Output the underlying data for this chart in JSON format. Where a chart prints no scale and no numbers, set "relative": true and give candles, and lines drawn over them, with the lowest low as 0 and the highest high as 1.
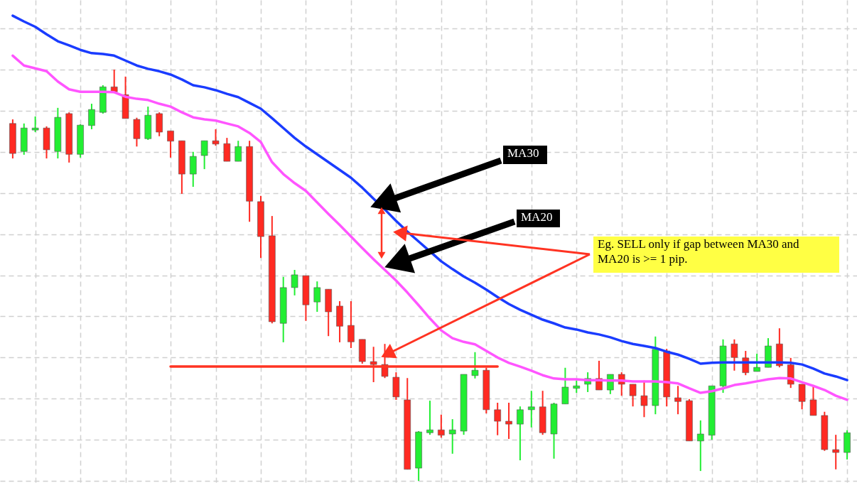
{
  "chart_data": {
    "type": "candlestick",
    "relative": true,
    "grid": true,
    "categories": [
      null,
      null,
      null,
      null,
      null,
      null,
      null,
      null,
      null,
      null,
      null,
      null,
      null,
      null,
      null,
      null,
      null,
      null,
      null,
      null,
      null,
      null,
      null,
      null,
      null,
      null,
      null,
      null,
      null,
      null,
      null,
      null,
      null,
      null,
      null,
      null,
      null,
      null,
      null,
      null,
      null,
      null,
      null,
      null,
      null,
      null,
      null,
      null,
      null,
      null,
      null,
      null,
      null,
      null,
      null,
      null,
      null,
      null,
      null,
      null,
      null,
      null,
      null,
      null,
      null,
      null,
      null,
      null,
      null,
      null,
      null,
      null,
      null,
      null,
      null
    ],
    "ohlc": [
      [
        0.869,
        0.879,
        0.784,
        0.796
      ],
      [
        0.801,
        0.869,
        0.793,
        0.858
      ],
      [
        0.853,
        0.886,
        0.848,
        0.858
      ],
      [
        0.858,
        0.862,
        0.784,
        0.805
      ],
      [
        0.801,
        0.907,
        0.784,
        0.884
      ],
      [
        0.893,
        0.896,
        0.774,
        0.794
      ],
      [
        0.794,
        0.867,
        0.786,
        0.865
      ],
      [
        0.864,
        0.917,
        0.855,
        0.903
      ],
      [
        0.896,
        0.962,
        0.893,
        0.958
      ],
      [
        0.958,
        1,
        0.946,
        0.946
      ],
      [
        0.939,
        0.983,
        0.881,
        0.881
      ],
      [
        0.879,
        0.883,
        0.813,
        0.832
      ],
      [
        0.832,
        0.91,
        0.829,
        0.889
      ],
      [
        0.893,
        0.896,
        0.838,
        0.848
      ],
      [
        0.851,
        0.851,
        0.786,
        0.826
      ],
      [
        0.827,
        0.827,
        0.698,
        0.746
      ],
      [
        0.746,
        0.8,
        0.715,
        0.789
      ],
      [
        0.791,
        0.827,
        0.758,
        0.827
      ],
      [
        0.827,
        0.855,
        0.815,
        0.819
      ],
      [
        0.82,
        0.834,
        0.777,
        0.777
      ],
      [
        0.777,
        0.827,
        0.777,
        0.813
      ],
      [
        0.813,
        0.827,
        0.63,
        0.68
      ],
      [
        0.679,
        0.693,
        0.542,
        0.594
      ],
      [
        0.596,
        0.644,
        0.383,
        0.387
      ],
      [
        0.383,
        0.496,
        0.337,
        0.47
      ],
      [
        0.47,
        0.513,
        0.451,
        0.501
      ],
      [
        0.499,
        0.499,
        0.389,
        0.428
      ],
      [
        0.435,
        0.485,
        0.411,
        0.47
      ],
      [
        0.466,
        0.466,
        0.352,
        0.411
      ],
      [
        0.425,
        0.437,
        0.337,
        0.376
      ],
      [
        0.378,
        0.437,
        0.323,
        0.338
      ],
      [
        0.344,
        0.344,
        0.285,
        0.29
      ],
      [
        0.29,
        0.326,
        0.24,
        0.283
      ],
      [
        0.283,
        0.333,
        0.25,
        0.254
      ],
      [
        0.252,
        0.264,
        0.197,
        0.204
      ],
      [
        0.197,
        0.25,
        0.028,
        0.028
      ],
      [
        0.031,
        0.121,
        0,
        0.119
      ],
      [
        0.117,
        0.195,
        0.112,
        0.124
      ],
      [
        0.124,
        0.161,
        0.105,
        0.111
      ],
      [
        0.114,
        0.15,
        0.066,
        0.124
      ],
      [
        0.121,
        0.259,
        0.112,
        0.259
      ],
      [
        0.256,
        0.313,
        0.249,
        0.269
      ],
      [
        0.269,
        0.275,
        0.164,
        0.173
      ],
      [
        0.173,
        0.19,
        0.111,
        0.145
      ],
      [
        0.145,
        0.19,
        0.102,
        0.138
      ],
      [
        0.138,
        0.181,
        0.05,
        0.173
      ],
      [
        0.173,
        0.219,
        0.13,
        0.18
      ],
      [
        0.18,
        0.219,
        0.112,
        0.117
      ],
      [
        0.114,
        0.19,
        0.054,
        0.187
      ],
      [
        0.187,
        0.275,
        0.187,
        0.228
      ],
      [
        0.225,
        0.244,
        0.214,
        0.231
      ],
      [
        0.235,
        0.264,
        0.216,
        0.249
      ],
      [
        0.249,
        0.292,
        0.221,
        0.221
      ],
      [
        0.221,
        0.259,
        0.211,
        0.259
      ],
      [
        0.259,
        0.264,
        0.207,
        0.235
      ],
      [
        0.235,
        0.235,
        0.181,
        0.207
      ],
      [
        0.207,
        0.244,
        0.155,
        0.183
      ],
      [
        0.183,
        0.351,
        0.162,
        0.32
      ],
      [
        0.316,
        0.321,
        0.181,
        0.204
      ],
      [
        0.202,
        0.231,
        0.162,
        0.193
      ],
      [
        0.195,
        0.199,
        0.097,
        0.097
      ],
      [
        0.097,
        0.147,
        0.024,
        0.114
      ],
      [
        0.111,
        0.231,
        0.1,
        0.231
      ],
      [
        0.231,
        0.344,
        0.214,
        0.328
      ],
      [
        0.333,
        0.344,
        0.268,
        0.3
      ],
      [
        0.299,
        0.316,
        0.257,
        0.263
      ],
      [
        0.266,
        0.309,
        0.266,
        0.276
      ],
      [
        0.276,
        0.347,
        0.276,
        0.328
      ],
      [
        0.333,
        0.371,
        0.276,
        0.28
      ],
      [
        0.282,
        0.299,
        0.226,
        0.235
      ],
      [
        0.235,
        0.235,
        0.174,
        0.193
      ],
      [
        0.197,
        0.23,
        0.159,
        0.159
      ],
      [
        0.159,
        0.168,
        0.073,
        0.076
      ],
      [
        0.076,
        0.112,
        0.028,
        0.069
      ],
      [
        0.069,
        0.123,
        0.052,
        0.117
      ]
    ],
    "colors": [
      "#ff2a22",
      "#22ee33",
      "#22ee33",
      "#ff2a22",
      "#22ee33",
      "#ff2a22",
      "#22ee33",
      "#22ee33",
      "#22ee33",
      "#ff2a22",
      "#ff2a22",
      "#ff2a22",
      "#22ee33",
      "#ff2a22",
      "#ff2a22",
      "#ff2a22",
      "#22ee33",
      "#22ee33",
      "#ff2a22",
      "#ff2a22",
      "#22ee33",
      "#ff2a22",
      "#ff2a22",
      "#ff2a22",
      "#22ee33",
      "#22ee33",
      "#ff2a22",
      "#22ee33",
      "#ff2a22",
      "#ff2a22",
      "#ff2a22",
      "#ff2a22",
      "#ff2a22",
      "#ff2a22",
      "#ff2a22",
      "#ff2a22",
      "#22ee33",
      "#22ee33",
      "#ff2a22",
      "#22ee33",
      "#22ee33",
      "#22ee33",
      "#ff2a22",
      "#ff2a22",
      "#ff2a22",
      "#22ee33",
      "#22ee33",
      "#ff2a22",
      "#22ee33",
      "#22ee33",
      "#22ee33",
      "#22ee33",
      "#ff2a22",
      "#22ee33",
      "#ff2a22",
      "#ff2a22",
      "#ff2a22",
      "#22ee33",
      "#ff2a22",
      "#ff2a22",
      "#ff2a22",
      "#22ee33",
      "#22ee33",
      "#22ee33",
      "#ff2a22",
      "#ff2a22",
      "#22ee33",
      "#22ee33",
      "#ff2a22",
      "#ff2a22",
      "#ff2a22",
      "#ff2a22",
      "#ff2a22",
      "#ff2a22",
      "#22ee33"
    ],
    "series": [
      {
        "type": "line",
        "color": "#1a3cff",
        "values": [
          1.131,
          1.117,
          1.104,
          1.086,
          1.069,
          1.059,
          1.048,
          1.04,
          1.038,
          1.034,
          1.022,
          1.01,
          1.002,
          0.996,
          0.988,
          0.976,
          0.962,
          0.957,
          0.95,
          0.941,
          0.933,
          0.919,
          0.905,
          0.882,
          0.858,
          0.834,
          0.813,
          0.794,
          0.775,
          0.756,
          0.737,
          0.713,
          0.686,
          0.66,
          0.632,
          0.606,
          0.582,
          0.558,
          0.534,
          0.515,
          0.497,
          0.482,
          0.465,
          0.447,
          0.43,
          0.416,
          0.404,
          0.392,
          0.383,
          0.373,
          0.368,
          0.361,
          0.356,
          0.349,
          0.34,
          0.333,
          0.328,
          0.323,
          0.314,
          0.307,
          0.297,
          0.285,
          0.287,
          0.288,
          0.288,
          0.288,
          0.288,
          0.288,
          0.288,
          0.287,
          0.283,
          0.273,
          0.261,
          0.254,
          0.245
        ]
      },
      {
        "type": "line",
        "color": "#ff55ff",
        "values": [
          1.034,
          1.01,
          1.003,
          0.996,
          0.971,
          0.952,
          0.946,
          0.946,
          0.946,
          0.945,
          0.934,
          0.929,
          0.926,
          0.917,
          0.91,
          0.896,
          0.884,
          0.879,
          0.876,
          0.869,
          0.862,
          0.846,
          0.824,
          0.775,
          0.746,
          0.724,
          0.705,
          0.677,
          0.649,
          0.622,
          0.594,
          0.566,
          0.539,
          0.513,
          0.487,
          0.458,
          0.427,
          0.395,
          0.366,
          0.347,
          0.338,
          0.332,
          0.316,
          0.3,
          0.287,
          0.278,
          0.268,
          0.257,
          0.249,
          0.247,
          0.247,
          0.245,
          0.245,
          0.244,
          0.244,
          0.242,
          0.242,
          0.242,
          0.24,
          0.237,
          0.225,
          0.214,
          0.218,
          0.225,
          0.233,
          0.237,
          0.242,
          0.247,
          0.25,
          0.249,
          0.24,
          0.231,
          0.221,
          0.207,
          0.197
        ]
      },
      {
        "type": "line",
        "color": "#ff3322",
        "values": [
          null,
          null,
          null,
          null,
          null,
          null,
          null,
          null,
          null,
          null,
          null,
          null,
          null,
          null,
          0.278,
          0.278,
          0.278,
          0.278,
          0.278,
          0.278,
          0.278,
          0.278,
          0.278,
          0.278,
          0.278,
          0.278,
          0.278,
          0.278,
          0.278,
          0.278,
          0.278,
          0.278,
          0.278,
          0.278,
          0.278,
          0.278,
          0.278,
          0.278,
          0.278,
          0.278,
          0.278,
          0.278,
          0.278,
          0.278,
          null,
          null,
          null,
          null,
          null,
          null,
          null,
          null,
          null,
          null,
          null,
          null,
          null,
          null,
          null,
          null,
          null,
          null,
          null,
          null,
          null,
          null,
          null,
          null,
          null,
          null,
          null,
          null,
          null,
          null,
          null
        ]
      }
    ],
    "annotations": [
      "MA30",
      "MA20",
      "Eg. SELL only if gap between MA30 and MA20 is >= 1 pip."
    ]
  }
}
